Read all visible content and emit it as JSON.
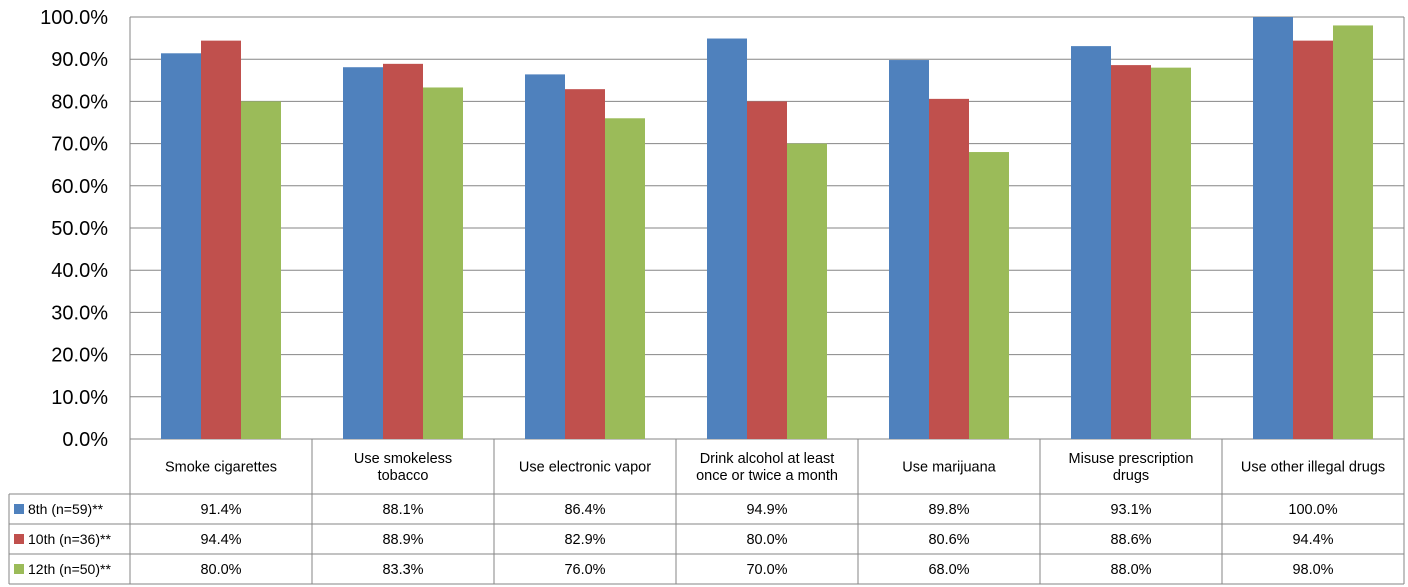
{
  "chart_data": {
    "type": "bar",
    "categories": [
      [
        "Smoke cigarettes"
      ],
      [
        "Use smokeless",
        "tobacco"
      ],
      [
        "Use electronic vapor"
      ],
      [
        "Drink alcohol at least",
        "once or twice a month"
      ],
      [
        "Use marijuana"
      ],
      [
        "Misuse prescription",
        "drugs"
      ],
      [
        "Use other illegal drugs"
      ]
    ],
    "series": [
      {
        "name": "8th (n=59)**",
        "color": "#4F81BD",
        "values": [
          91.4,
          88.1,
          86.4,
          94.9,
          89.8,
          93.1,
          100.0
        ],
        "labels": [
          "91.4%",
          "88.1%",
          "86.4%",
          "94.9%",
          "89.8%",
          "93.1%",
          "100.0%"
        ]
      },
      {
        "name": "10th (n=36)**",
        "color": "#C0504D",
        "values": [
          94.4,
          88.9,
          82.9,
          80.0,
          80.6,
          88.6,
          94.4
        ],
        "labels": [
          "94.4%",
          "88.9%",
          "82.9%",
          "80.0%",
          "80.6%",
          "88.6%",
          "94.4%"
        ]
      },
      {
        "name": "12th (n=50)**",
        "color": "#9BBB59",
        "values": [
          80.0,
          83.3,
          76.0,
          70.0,
          68.0,
          88.0,
          98.0
        ],
        "labels": [
          "80.0%",
          "83.3%",
          "76.0%",
          "70.0%",
          "68.0%",
          "88.0%",
          "98.0%"
        ]
      }
    ],
    "y_ticks": [
      "0.0%",
      "10.0%",
      "20.0%",
      "30.0%",
      "40.0%",
      "50.0%",
      "60.0%",
      "70.0%",
      "80.0%",
      "90.0%",
      "100.0%"
    ],
    "ylim": [
      0,
      100
    ],
    "grid": true,
    "legend": "data-table",
    "title": "",
    "xlabel": "",
    "ylabel": ""
  }
}
